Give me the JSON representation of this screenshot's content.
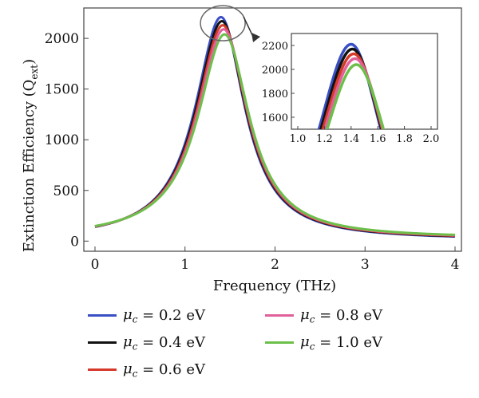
{
  "chart_data": {
    "type": "line",
    "xlabel": "Frequency (THz)",
    "ylabel_main": "Extinction Efficiency (Q",
    "ylabel_sub": "ext",
    "ylabel_close": ")",
    "xlim": [
      0,
      4
    ],
    "ylim": [
      -100,
      2300
    ],
    "xticks": [
      0,
      1,
      2,
      3,
      4
    ],
    "yticks": [
      0,
      500,
      1000,
      1500,
      2000
    ],
    "grid": false,
    "legend_position": "bottom",
    "series": [
      {
        "name": "= 0.2 eV",
        "color": "#3a4fc4",
        "peak": 2210,
        "f0": 1.4,
        "gamma": 0.322,
        "offset": 12
      },
      {
        "name": "= 0.4 eV",
        "color": "#111111",
        "peak": 2170,
        "f0": 1.41,
        "gamma": 0.325,
        "offset": 16
      },
      {
        "name": "= 0.6 eV",
        "color": "#d63a2a",
        "peak": 2130,
        "f0": 1.42,
        "gamma": 0.328,
        "offset": 20
      },
      {
        "name": "= 0.8 eV",
        "color": "#e0609a",
        "peak": 2090,
        "f0": 1.43,
        "gamma": 0.331,
        "offset": 24
      },
      {
        "name": "= 1.0 eV",
        "color": "#6cc04a",
        "peak": 2040,
        "f0": 1.44,
        "gamma": 0.335,
        "offset": 28
      }
    ],
    "inset": {
      "xlim": [
        1.0,
        2.0
      ],
      "ylim": [
        1500,
        2300
      ],
      "xticks": [
        1.0,
        1.2,
        1.4,
        1.6,
        1.8,
        2.0
      ],
      "yticks": [
        1600,
        1800,
        2000,
        2200
      ]
    }
  },
  "legend": {
    "mu_symbol": "μ",
    "mu_sub": "c"
  }
}
